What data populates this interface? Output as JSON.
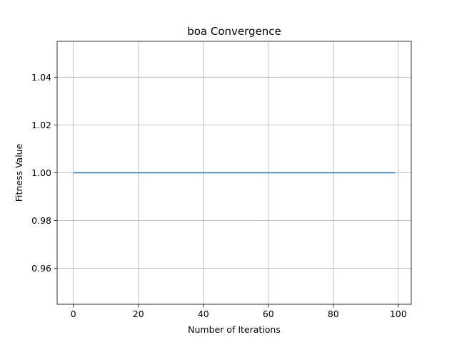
{
  "chart_data": {
    "type": "line",
    "title": "boa Convergence",
    "xlabel": "Number of Iterations",
    "ylabel": "Fitness Value",
    "xlim": [
      -5,
      104
    ],
    "ylim": [
      0.945,
      1.055
    ],
    "xticks": [
      0,
      20,
      40,
      60,
      80,
      100
    ],
    "xtick_labels": [
      "0",
      "20",
      "40",
      "60",
      "80",
      "100"
    ],
    "yticks": [
      0.96,
      0.98,
      1.0,
      1.02,
      1.04
    ],
    "ytick_labels": [
      "0.96",
      "0.98",
      "1.00",
      "1.02",
      "1.04"
    ],
    "grid": true,
    "series": [
      {
        "x": [
          0,
          99
        ],
        "values": [
          1.0,
          1.0
        ],
        "color": "#1f77b4"
      }
    ]
  }
}
